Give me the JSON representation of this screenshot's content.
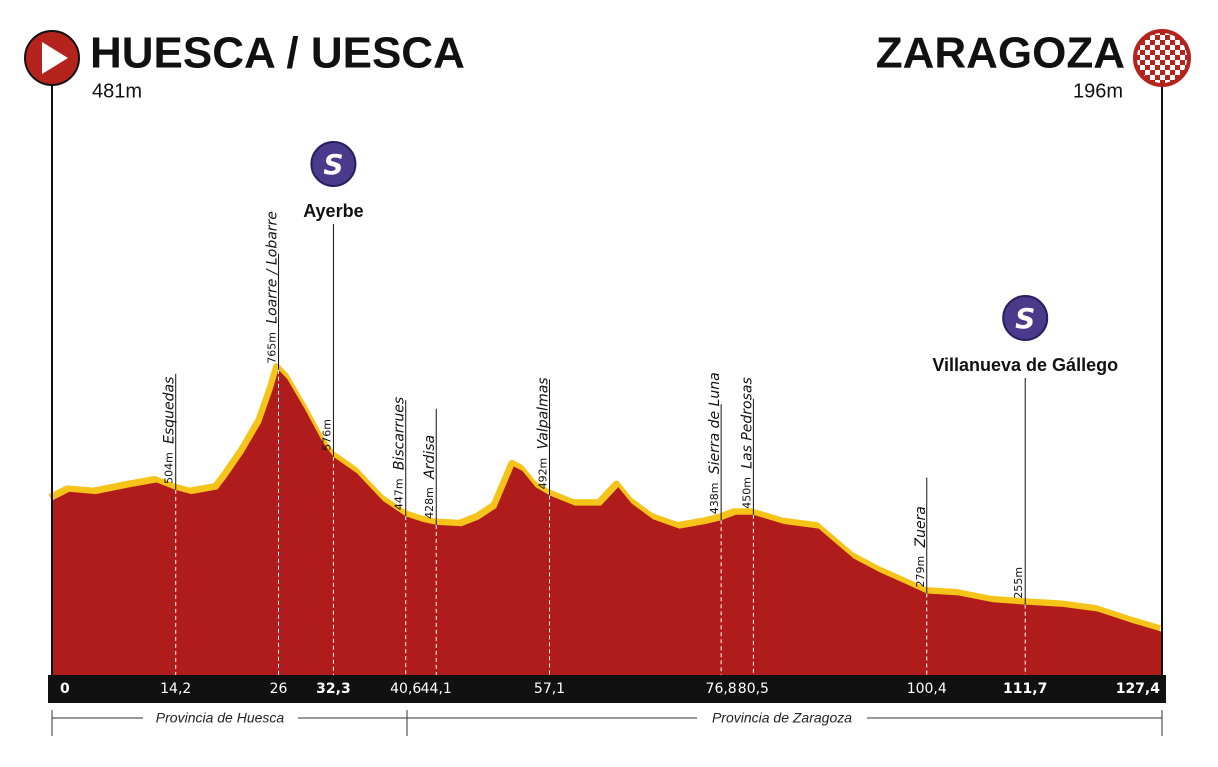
{
  "start": {
    "name": "HUESCA / UESCA",
    "altitude": {
      "value": 481,
      "label": "481m"
    },
    "km": 0
  },
  "finish": {
    "name": "ZARAGOZA",
    "altitude": {
      "value": 196,
      "label": "196m"
    },
    "km": {
      "value": 127.4,
      "label": "127,4"
    }
  },
  "points": [
    {
      "name": "Esquedas",
      "altitude": {
        "value": 504,
        "label": "504m"
      },
      "km": {
        "value": 14.2,
        "label": "14,2"
      }
    },
    {
      "name": "Loarre / Lobarre",
      "altitude": {
        "value": 765,
        "label": "765m"
      },
      "km": 26
    },
    {
      "sprint": "S",
      "sprint_name": "Ayerbe",
      "altitude": {
        "value": 576,
        "label": "576m"
      },
      "km": {
        "value": 32.3,
        "label": "32,3"
      }
    },
    {
      "name": "Biscarrues",
      "altitude": {
        "value": 447,
        "label": "447m"
      },
      "km": {
        "value": 40.6,
        "label": "40,6"
      }
    },
    {
      "name": "Ardisa",
      "altitude": {
        "value": 428,
        "label": "428m"
      },
      "km": {
        "value": 44.1,
        "label": "44,1"
      }
    },
    {
      "name": "Valpalmas",
      "altitude": {
        "value": 492,
        "label": "492m"
      },
      "km": {
        "value": 57.1,
        "label": "57,1"
      }
    },
    {
      "name": "Sierra de Luna",
      "altitude": {
        "value": 438,
        "label": "438m"
      },
      "km": {
        "value": 76.8,
        "label": "76,8"
      }
    },
    {
      "name": "Las Pedrosas",
      "altitude": {
        "value": 450,
        "label": "450m"
      },
      "km": {
        "value": 80.5,
        "label": "80,5"
      }
    },
    {
      "name": "Zuera",
      "altitude": {
        "value": 279,
        "label": "279m"
      },
      "km": {
        "value": 100.4,
        "label": "100,4"
      }
    },
    {
      "sprint": "S",
      "sprint_name": "Villanueva de Gállego",
      "altitude": {
        "value": 255,
        "label": "255m"
      },
      "km": {
        "value": 111.7,
        "label": "111,7"
      }
    }
  ],
  "provinces": [
    "Provincia de Huesca",
    "Provincia de Zaragoza"
  ],
  "profile": {
    "km": [
      0,
      2,
      5,
      9,
      12,
      14.2,
      16,
      19,
      20,
      22,
      24,
      25.3,
      26,
      27,
      29,
      31,
      32.3,
      35,
      38,
      40.6,
      42.5,
      44.1,
      47,
      49,
      51,
      53,
      54,
      55.5,
      57.1,
      60,
      63,
      65,
      66.5,
      69,
      72,
      75,
      76.8,
      78.5,
      80.5,
      84,
      88,
      92,
      95,
      98,
      100.4,
      104,
      108,
      111.7,
      116,
      120,
      124,
      127.4
    ],
    "altitude": [
      481,
      500,
      495,
      510,
      520,
      504,
      495,
      505,
      530,
      585,
      650,
      720,
      765,
      745,
      680,
      610,
      576,
      540,
      480,
      447,
      435,
      428,
      425,
      440,
      465,
      555,
      545,
      510,
      492,
      470,
      470,
      510,
      475,
      440,
      420,
      430,
      438,
      450,
      450,
      430,
      420,
      355,
      325,
      300,
      279,
      275,
      260,
      255,
      250,
      240,
      215,
      196
    ]
  }
}
